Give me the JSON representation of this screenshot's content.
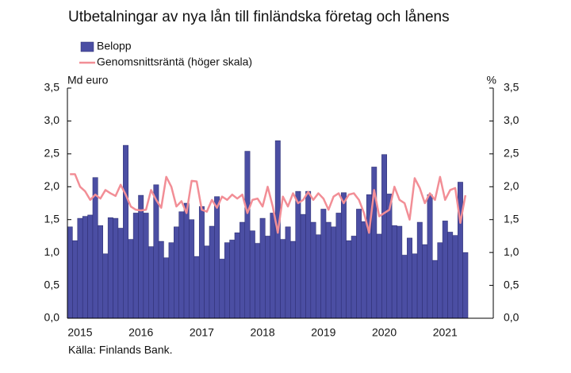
{
  "chart_data": {
    "type": "bar",
    "title": "Utbetalningar av nya lån till finländska företag och lånens",
    "y_label": "Md euro",
    "y2_label": "%",
    "source": "Källa: Finlands Bank.",
    "categories": [
      null,
      null,
      "2015",
      null,
      null,
      null,
      null,
      null,
      null,
      null,
      null,
      null,
      null,
      null,
      "2016",
      null,
      null,
      null,
      null,
      null,
      null,
      null,
      null,
      null,
      null,
      null,
      "2017",
      null,
      null,
      null,
      null,
      null,
      null,
      null,
      null,
      null,
      null,
      null,
      "2018",
      null,
      null,
      null,
      null,
      null,
      null,
      null,
      null,
      null,
      null,
      null,
      "2019",
      null,
      null,
      null,
      null,
      null,
      null,
      null,
      null,
      null,
      null,
      null,
      "2020",
      null,
      null,
      null,
      null,
      null,
      null,
      null,
      null,
      null,
      null,
      null,
      "2021",
      null,
      null,
      null,
      null,
      null,
      null,
      null,
      null,
      null
    ],
    "series": [
      {
        "name": "Belopp",
        "color": "#4b4ea3",
        "values": [
          1.39,
          1.18,
          1.52,
          1.55,
          1.57,
          2.14,
          1.41,
          0.98,
          1.53,
          1.52,
          1.37,
          2.63,
          1.2,
          1.6,
          1.87,
          1.6,
          1.09,
          2.03,
          1.17,
          0.92,
          1.15,
          1.39,
          1.62,
          1.75,
          1.5,
          0.94,
          1.7,
          1.1,
          1.4,
          1.85,
          0.9,
          1.15,
          1.19,
          1.3,
          1.46,
          2.54,
          1.33,
          1.14,
          1.52,
          1.25,
          1.6,
          2.7,
          1.2,
          1.39,
          1.17,
          1.93,
          1.58,
          1.93,
          1.46,
          1.27,
          1.66,
          1.46,
          1.39,
          1.6,
          1.91,
          1.18,
          1.25,
          1.66,
          1.47,
          1.88,
          2.3,
          1.28,
          2.49,
          1.89,
          1.41,
          1.4,
          0.96,
          1.22,
          0.98,
          1.46,
          1.12,
          1.88,
          0.88,
          1.15,
          1.48,
          1.31,
          1.26,
          2.07,
          1.0,
          null,
          null,
          null,
          null,
          null
        ]
      },
      {
        "name": "Genomsnittsräntä (höger skala)",
        "color": "#f28e96",
        "type": "line",
        "axis": "y2",
        "values": [
          2.19,
          2.19,
          2.0,
          1.93,
          1.8,
          1.88,
          1.82,
          1.95,
          1.9,
          1.86,
          2.03,
          1.88,
          1.7,
          1.65,
          1.64,
          1.65,
          1.95,
          1.8,
          1.68,
          2.15,
          2.0,
          1.7,
          1.78,
          1.6,
          2.09,
          2.08,
          1.65,
          1.62,
          1.8,
          1.68,
          1.85,
          1.8,
          1.88,
          1.82,
          1.88,
          1.6,
          1.8,
          1.82,
          1.7,
          2.0,
          1.7,
          1.3,
          1.85,
          1.7,
          1.9,
          1.75,
          1.8,
          1.92,
          1.8,
          1.9,
          1.82,
          1.65,
          1.85,
          1.9,
          1.75,
          1.88,
          1.9,
          1.8,
          1.6,
          1.3,
          1.95,
          1.55,
          1.6,
          1.65,
          2.0,
          1.8,
          1.75,
          1.5,
          2.13,
          1.98,
          1.75,
          1.9,
          1.8,
          2.15,
          1.8,
          1.95,
          1.98,
          1.45,
          1.87,
          null,
          null,
          null,
          null,
          null
        ]
      }
    ],
    "ylim": [
      0,
      3.5
    ],
    "yticks": [
      {
        "value": 0,
        "label": "0,0"
      },
      {
        "value": 0.5,
        "label": "0,5"
      },
      {
        "value": 1,
        "label": "1,0"
      },
      {
        "value": 1.5,
        "label": "1,5"
      },
      {
        "value": 2,
        "label": "2,0"
      },
      {
        "value": 2.5,
        "label": "2,5"
      },
      {
        "value": 3,
        "label": "3,0"
      },
      {
        "value": 3.5,
        "label": "3,5"
      }
    ],
    "y2lim": [
      0,
      3.5
    ],
    "y2ticks": [
      {
        "value": 0,
        "label": "0,0"
      },
      {
        "value": 0.5,
        "label": "0,5"
      },
      {
        "value": 1,
        "label": "1,0"
      },
      {
        "value": 1.5,
        "label": "1,5"
      },
      {
        "value": 2,
        "label": "2,0"
      },
      {
        "value": 2.5,
        "label": "2,5"
      },
      {
        "value": 3,
        "label": "3,0"
      },
      {
        "value": 3.5,
        "label": "3,5"
      }
    ],
    "grid": false
  }
}
